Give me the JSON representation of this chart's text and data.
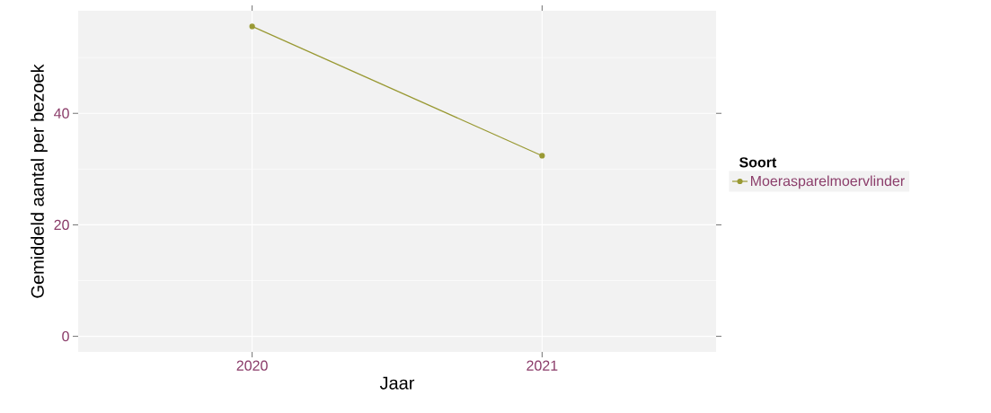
{
  "chart_data": {
    "type": "line",
    "xlabel": "Jaar",
    "ylabel": "Gemiddeld aantal per bezoek",
    "legend_title": "Soort",
    "categories": [
      "2020",
      "2021"
    ],
    "series": [
      {
        "name": "Moerasparelmoervlinder",
        "color": "#999933",
        "values": [
          55.6,
          32.4
        ]
      }
    ],
    "ylim": [
      -2.8,
      58.4
    ],
    "yticks": [
      0,
      20,
      40
    ],
    "grid": true,
    "legend": "right",
    "marker": "circle",
    "line_style": "solid"
  }
}
